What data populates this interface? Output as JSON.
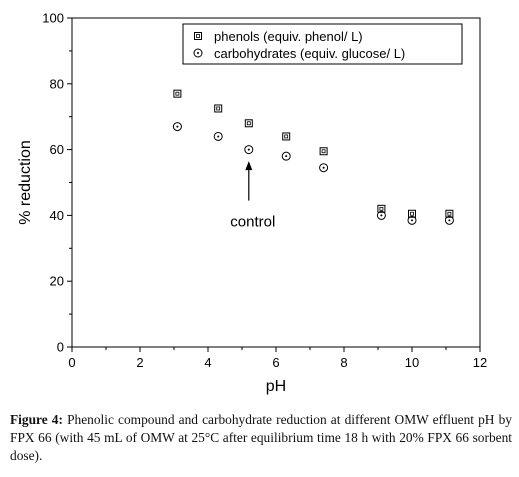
{
  "chart_data": {
    "type": "scatter",
    "xlabel": "pH",
    "ylabel": "% reduction",
    "xlim": [
      0,
      12
    ],
    "ylim": [
      0,
      100
    ],
    "xticks": [
      0,
      2,
      4,
      6,
      8,
      10,
      12
    ],
    "yticks": [
      0,
      20,
      40,
      60,
      80,
      100
    ],
    "grid": false,
    "legend_position": "top-right",
    "series": [
      {
        "name": "phenols (equiv. phenol/ L)",
        "marker": "square",
        "color": "#000000",
        "x": [
          3.1,
          4.3,
          5.2,
          6.3,
          7.4,
          9.1,
          10.0,
          11.1
        ],
        "y": [
          77,
          72.5,
          68,
          64,
          59.5,
          42,
          40.5,
          40.5
        ]
      },
      {
        "name": "carbohydrates (equiv. glucose/ L)",
        "marker": "circle",
        "color": "#000000",
        "x": [
          3.1,
          4.3,
          5.2,
          6.3,
          7.4,
          9.1,
          10.0,
          11.1
        ],
        "y": [
          67,
          64,
          60,
          58,
          54.5,
          40,
          38.5,
          38.5
        ]
      }
    ],
    "annotation": {
      "text": "control",
      "arrow_x": 5.2,
      "arrow_tip_y": 56.5,
      "arrow_tail_y": 44.5
    }
  },
  "caption": {
    "label": "Figure 4:",
    "text": " Phenolic compound and carbohydrate reduction at different OMW effluent pH by FPX 66 (with 45 mL of OMW at 25°C after equilibrium time 18 h with 20% FPX 66 sorbent dose)."
  }
}
